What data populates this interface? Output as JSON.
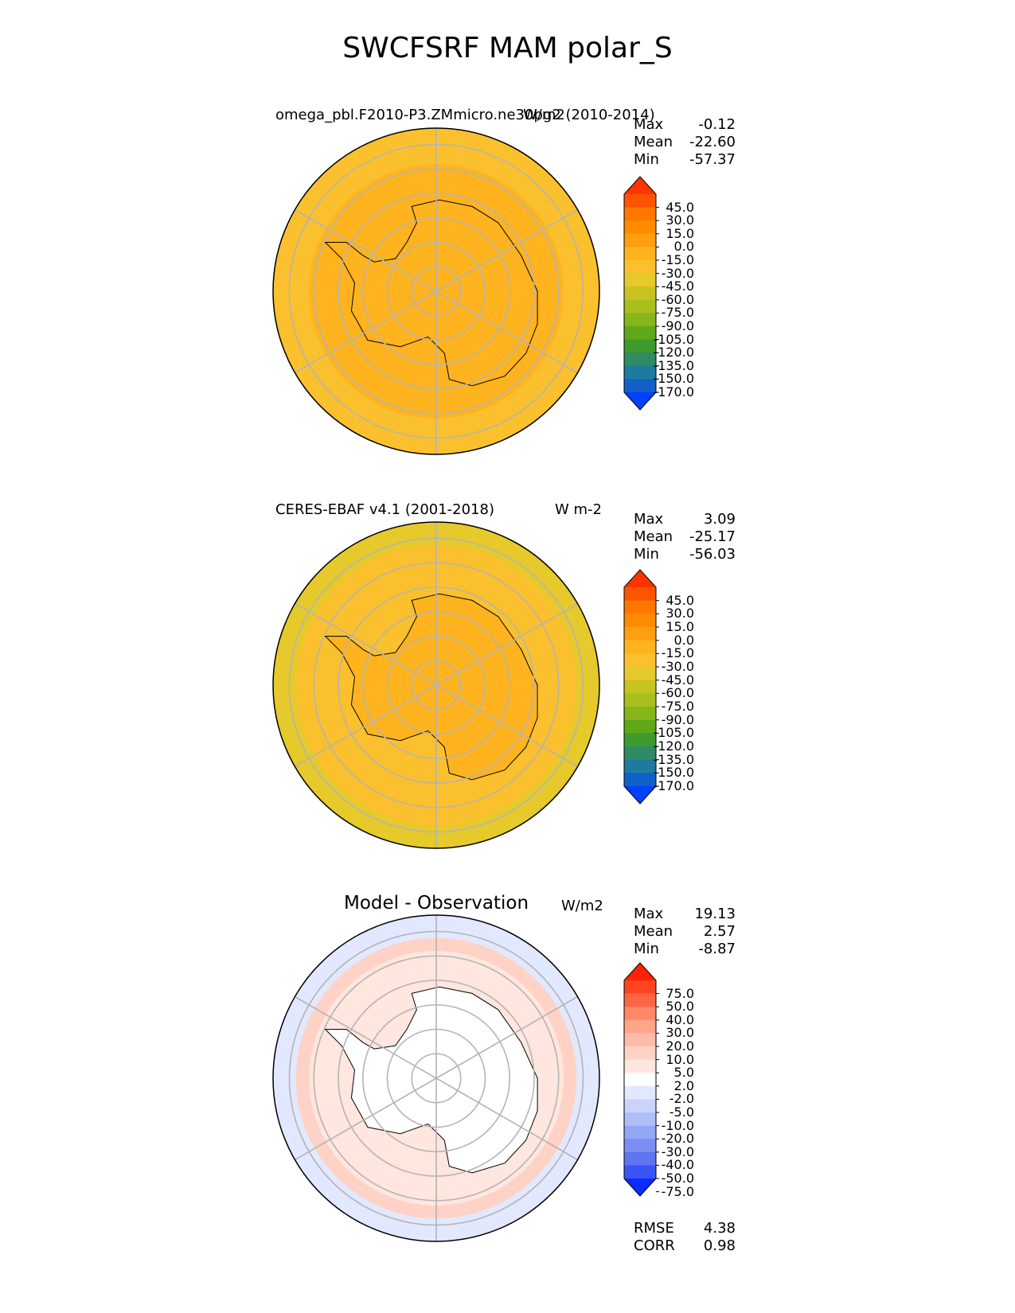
{
  "title": "SWCFSRF MAM polar_S",
  "colors": {
    "gridline": "#b4b4b4",
    "coastline": "#000000",
    "background": "#ffffff"
  },
  "chart_data": [
    {
      "type": "heatmap",
      "projection": "south polar stereographic",
      "title_left": "omega_pbl.F2010-P3.ZMmicro.ne30pg2 (2010-2014)",
      "units": "W/m2",
      "stats": {
        "Max": "-0.12",
        "Mean": "-22.60",
        "Min": "-57.37"
      },
      "colorbar": {
        "ticks": [
          "45.0",
          "30.0",
          "15.0",
          "0.0",
          "-15.0",
          "-30.0",
          "-45.0",
          "-60.0",
          "-75.0",
          "-90.0",
          "-105.0",
          "-120.0",
          "-135.0",
          "-150.0",
          "-170.0"
        ],
        "colors": [
          "#ff3300",
          "#ff5500",
          "#ff7700",
          "#ff8c00",
          "#ff9f0f",
          "#ffb31f",
          "#fbc02d",
          "#e6c92a",
          "#c7c320",
          "#a8bf1c",
          "#86b61a",
          "#5fa818",
          "#3d9a2e",
          "#2f8a66",
          "#1f7aa0",
          "#1060c8",
          "#0040ff"
        ],
        "extend": "both"
      },
      "regions": [
        {
          "zone": "outer ocean ring",
          "value": -45
        },
        {
          "zone": "mid ocean ring",
          "value": -38
        },
        {
          "zone": "inner ocean ring",
          "value": -30
        },
        {
          "zone": "antarctic continent",
          "value": -22
        }
      ]
    },
    {
      "type": "heatmap",
      "projection": "south polar stereographic",
      "title_left": "CERES-EBAF v4.1 (2001-2018)",
      "units": "W m-2",
      "stats": {
        "Max": "3.09",
        "Mean": "-25.17",
        "Min": "-56.03"
      },
      "colorbar": {
        "ticks": [
          "45.0",
          "30.0",
          "15.0",
          "0.0",
          "-15.0",
          "-30.0",
          "-45.0",
          "-60.0",
          "-75.0",
          "-90.0",
          "-105.0",
          "-120.0",
          "-135.0",
          "-150.0",
          "-170.0"
        ],
        "colors": [
          "#ff3300",
          "#ff5500",
          "#ff7700",
          "#ff8c00",
          "#ff9f0f",
          "#ffb31f",
          "#fbc02d",
          "#e6c92a",
          "#c7c320",
          "#a8bf1c",
          "#86b61a",
          "#5fa818",
          "#3d9a2e",
          "#2f8a66",
          "#1f7aa0",
          "#1060c8",
          "#0040ff"
        ],
        "extend": "both"
      },
      "regions": [
        {
          "zone": "outer ocean ring",
          "value": -48
        },
        {
          "zone": "mid ocean ring",
          "value": -40
        },
        {
          "zone": "inner ocean ring",
          "value": -32
        },
        {
          "zone": "antarctic continent",
          "value": -22
        }
      ]
    },
    {
      "type": "heatmap",
      "projection": "south polar stereographic",
      "title_center": "Model - Observation",
      "units": "W/m2",
      "stats": {
        "Max": "19.13",
        "Mean": "2.57",
        "Min": "-8.87"
      },
      "metrics": {
        "RMSE": "4.38",
        "CORR": "0.98"
      },
      "colorbar": {
        "ticks": [
          "75.0",
          "50.0",
          "40.0",
          "30.0",
          "20.0",
          "10.0",
          "5.0",
          "2.0",
          "-2.0",
          "-5.0",
          "-10.0",
          "-20.0",
          "-30.0",
          "-40.0",
          "-50.0",
          "-75.0"
        ],
        "colors": [
          "#ff2200",
          "#ff4422",
          "#ff6644",
          "#ff8866",
          "#ffa58a",
          "#ffbbaa",
          "#ffd2c6",
          "#ffe6de",
          "#ffffff",
          "#e2e8ff",
          "#c9d3fb",
          "#b0bef8",
          "#94a6f5",
          "#7a8ef3",
          "#5e75f2",
          "#3a55f6",
          "#0a2cff"
        ],
        "extend": "both"
      },
      "regions": [
        {
          "zone": "outer ocean ring",
          "value": -4
        },
        {
          "zone": "mid ocean ring",
          "value": 6
        },
        {
          "zone": "inner ocean ring",
          "value": 3
        },
        {
          "zone": "antarctic continent",
          "value": 0
        }
      ]
    }
  ]
}
